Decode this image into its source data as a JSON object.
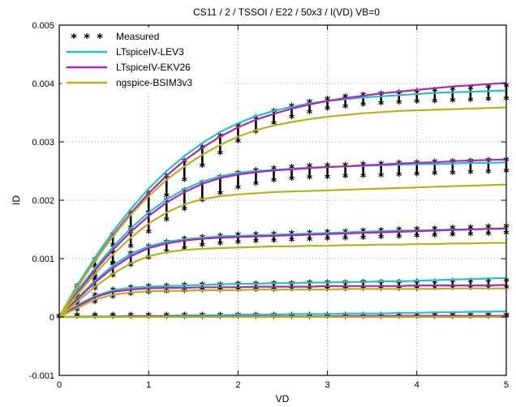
{
  "chart_data": {
    "type": "line",
    "title": "CS11 / 2 / TSSOI / E22 / 50x3 / I(VD) VB=0",
    "xlabel": "VD",
    "ylabel": "ID",
    "xlim": [
      0,
      5
    ],
    "ylim": [
      -0.001,
      0.005
    ],
    "x_ticks": [
      "0",
      "1",
      "2",
      "3",
      "4",
      "5"
    ],
    "y_ticks": [
      "-0.001",
      "0",
      "0.001",
      "0.002",
      "0.003",
      "0.004",
      "0.005"
    ],
    "grid": true,
    "legend_position": "top-left",
    "x": [
      0,
      0.2,
      0.4,
      0.6,
      0.8,
      1.0,
      1.2,
      1.4,
      1.6,
      1.8,
      2.0,
      2.2,
      2.4,
      2.6,
      2.8,
      3.0,
      3.2,
      3.4,
      3.6,
      3.8,
      4.0,
      4.2,
      4.4,
      4.6,
      4.8,
      5.0
    ],
    "series": [
      {
        "name": "Measured",
        "style": "markers",
        "color": "#000000",
        "curves": [
          {
            "min": [
              0,
              0.0,
              0.0,
              0.0,
              0.0,
              0.0,
              0.0,
              0.0,
              0.0,
              0.0,
              0.0,
              0.0,
              0.0,
              0.0,
              0.0,
              0.0,
              0.0,
              0.0,
              0.0,
              0.0,
              0.0,
              0.0,
              0.0,
              0.0,
              0.0,
              0.0
            ],
            "max": [
              0,
              3e-05,
              3e-05,
              3e-05,
              3e-05,
              3e-05,
              3e-05,
              3e-05,
              3e-05,
              3e-05,
              3e-05,
              3e-05,
              3e-05,
              3e-05,
              3e-05,
              3e-05,
              3e-05,
              3e-05,
              3e-05,
              3e-05,
              3e-05,
              3e-05,
              3e-05,
              3e-05,
              3e-05,
              3e-05
            ]
          },
          {
            "min": [
              0,
              0.00012,
              0.00025,
              0.00034,
              0.00039,
              0.00042,
              0.00043,
              0.00044,
              0.00045,
              0.00045,
              0.00046,
              0.00046,
              0.00046,
              0.00047,
              0.00047,
              0.00047,
              0.00047,
              0.00048,
              0.00048,
              0.00048,
              0.00048,
              0.00049,
              0.00049,
              0.00049,
              0.00049,
              0.0005
            ],
            "max": [
              0,
              0.00022,
              0.00037,
              0.00046,
              0.0005,
              0.00052,
              0.00053,
              0.00054,
              0.00055,
              0.00055,
              0.00056,
              0.00056,
              0.00057,
              0.00057,
              0.00058,
              0.00058,
              0.00058,
              0.00059,
              0.00059,
              0.00059,
              0.0006,
              0.0006,
              0.00061,
              0.00061,
              0.00062,
              0.00062
            ]
          },
          {
            "min": [
              0,
              0.00022,
              0.00048,
              0.0007,
              0.00088,
              0.00101,
              0.00111,
              0.00117,
              0.00122,
              0.00125,
              0.00127,
              0.00129,
              0.0013,
              0.00131,
              0.00132,
              0.00133,
              0.00134,
              0.00135,
              0.00136,
              0.00137,
              0.00138,
              0.00139,
              0.0014,
              0.00141,
              0.00142,
              0.00143
            ],
            "max": [
              0,
              0.00035,
              0.00066,
              0.0009,
              0.00108,
              0.0012,
              0.00128,
              0.00133,
              0.00136,
              0.00138,
              0.0014,
              0.00141,
              0.00142,
              0.00143,
              0.00144,
              0.00145,
              0.00146,
              0.00147,
              0.00148,
              0.00149,
              0.0015,
              0.00151,
              0.00152,
              0.00153,
              0.00154,
              0.00155
            ]
          },
          {
            "min": [
              0,
              0.00028,
              0.00062,
              0.00092,
              0.0012,
              0.00145,
              0.00166,
              0.00184,
              0.00199,
              0.00211,
              0.00221,
              0.00228,
              0.00233,
              0.00236,
              0.00238,
              0.00239,
              0.0024,
              0.00241,
              0.00242,
              0.00243,
              0.00244,
              0.00245,
              0.00246,
              0.00247,
              0.00248,
              0.00249
            ],
            "max": [
              0,
              0.00046,
              0.00086,
              0.00122,
              0.00152,
              0.00178,
              0.00199,
              0.00216,
              0.00229,
              0.00239,
              0.00246,
              0.00251,
              0.00254,
              0.00256,
              0.00258,
              0.00259,
              0.0026,
              0.00261,
              0.00262,
              0.00263,
              0.00264,
              0.00265,
              0.00266,
              0.00267,
              0.00268,
              0.00269
            ]
          },
          {
            "min": [
              0,
              0.00032,
              0.00072,
              0.0011,
              0.00145,
              0.00178,
              0.00207,
              0.00234,
              0.00258,
              0.0028,
              0.003,
              0.00317,
              0.00331,
              0.00342,
              0.0035,
              0.00356,
              0.0036,
              0.00363,
              0.00365,
              0.00367,
              0.00368,
              0.00369,
              0.0037,
              0.00371,
              0.00372,
              0.00373
            ],
            "max": [
              0,
              0.00052,
              0.00098,
              0.0014,
              0.00178,
              0.00211,
              0.00241,
              0.00267,
              0.0029,
              0.0031,
              0.00327,
              0.00341,
              0.00352,
              0.00361,
              0.00368,
              0.00373,
              0.00377,
              0.0038,
              0.00382,
              0.00384,
              0.00386,
              0.00388,
              0.0039,
              0.00392,
              0.00394,
              0.00396
            ]
          }
        ]
      },
      {
        "name": "LTspiceIV-LEV3",
        "style": "line",
        "color": "#22c3c3",
        "curves": [
          [
            0,
            1e-05,
            1e-05,
            1e-05,
            2e-05,
            2e-05,
            2e-05,
            3e-05,
            3e-05,
            3e-05,
            4e-05,
            4e-05,
            4e-05,
            5e-05,
            5e-05,
            5e-05,
            6e-05,
            6e-05,
            6e-05,
            7e-05,
            7e-05,
            8e-05,
            8e-05,
            9e-05,
            9e-05,
            0.0001
          ],
          [
            0,
            0.0002,
            0.00036,
            0.00046,
            0.0005,
            0.00052,
            0.00053,
            0.00054,
            0.00055,
            0.00056,
            0.00057,
            0.00057,
            0.00058,
            0.00058,
            0.00059,
            0.00059,
            0.0006,
            0.0006,
            0.00061,
            0.00061,
            0.00062,
            0.00063,
            0.00064,
            0.00065,
            0.00066,
            0.00067
          ],
          [
            0,
            0.00032,
            0.00062,
            0.00088,
            0.00108,
            0.00121,
            0.00129,
            0.00133,
            0.00136,
            0.00138,
            0.00139,
            0.0014,
            0.00141,
            0.00142,
            0.00143,
            0.00144,
            0.00145,
            0.00146,
            0.00147,
            0.00148,
            0.00148,
            0.00149,
            0.0015,
            0.0015,
            0.00151,
            0.00151
          ],
          [
            0,
            0.00044,
            0.00084,
            0.0012,
            0.00152,
            0.00179,
            0.00201,
            0.00219,
            0.00232,
            0.00241,
            0.00247,
            0.0025,
            0.00252,
            0.00254,
            0.00256,
            0.00257,
            0.00258,
            0.00259,
            0.0026,
            0.00261,
            0.00262,
            0.00262,
            0.00263,
            0.00264,
            0.00264,
            0.00265
          ],
          [
            0,
            0.00054,
            0.00102,
            0.00146,
            0.00185,
            0.0022,
            0.0025,
            0.00276,
            0.00298,
            0.00317,
            0.00332,
            0.00344,
            0.00353,
            0.0036,
            0.00366,
            0.0037,
            0.00373,
            0.00376,
            0.00378,
            0.0038,
            0.00382,
            0.00384,
            0.00385,
            0.00386,
            0.00387,
            0.00388
          ]
        ]
      },
      {
        "name": "LTspiceIV-EKV26",
        "style": "line",
        "color": "#b024c0",
        "curves": [
          [
            0,
            0.0,
            0.0,
            0.0,
            1e-05,
            1e-05,
            1e-05,
            1e-05,
            1e-05,
            1e-05,
            1e-05,
            1e-05,
            1e-05,
            1e-05,
            1e-05,
            1e-05,
            2e-05,
            2e-05,
            2e-05,
            2e-05,
            2e-05,
            2e-05,
            2e-05,
            2e-05,
            2e-05,
            2e-05
          ],
          [
            0,
            0.00018,
            0.00034,
            0.00043,
            0.00047,
            0.00049,
            0.0005,
            0.0005,
            0.00051,
            0.00051,
            0.00051,
            0.00052,
            0.00052,
            0.00052,
            0.00052,
            0.00053,
            0.00053,
            0.00053,
            0.00053,
            0.00053,
            0.00054,
            0.00054,
            0.00054,
            0.00054,
            0.00054,
            0.00055
          ],
          [
            0,
            0.0003,
            0.00059,
            0.00084,
            0.00104,
            0.00118,
            0.00126,
            0.00131,
            0.00134,
            0.00136,
            0.00137,
            0.00138,
            0.00139,
            0.0014,
            0.00141,
            0.00142,
            0.00143,
            0.00144,
            0.00145,
            0.00146,
            0.00147,
            0.00148,
            0.00149,
            0.0015,
            0.00151,
            0.00152
          ],
          [
            0,
            0.00041,
            0.0008,
            0.00115,
            0.00146,
            0.00173,
            0.00196,
            0.00214,
            0.00228,
            0.00238,
            0.00244,
            0.00248,
            0.00251,
            0.00253,
            0.00255,
            0.00257,
            0.00258,
            0.0026,
            0.00261,
            0.00263,
            0.00264,
            0.00265,
            0.00267,
            0.00268,
            0.00269,
            0.0027
          ],
          [
            0,
            0.0005,
            0.00097,
            0.0014,
            0.00178,
            0.00212,
            0.00242,
            0.00268,
            0.0029,
            0.00309,
            0.00325,
            0.00338,
            0.00348,
            0.00357,
            0.00364,
            0.0037,
            0.00375,
            0.00379,
            0.00383,
            0.00386,
            0.00389,
            0.00392,
            0.00395,
            0.00397,
            0.00399,
            0.00401
          ]
        ]
      },
      {
        "name": "ngspice-BSIM3v3",
        "style": "line",
        "color": "#b8b21a",
        "curves": [
          [
            0,
            0.0,
            0.0,
            0.0,
            0.0,
            0.0,
            0.0,
            0.0,
            0.0,
            0.0,
            0.0,
            0.0,
            0.0,
            0.0,
            0.0,
            0.0,
            0.0,
            0.0,
            0.0,
            0.0,
            0.0,
            0.0,
            0.0,
            0.0,
            0.0,
            0.0
          ],
          [
            0,
            0.00015,
            0.0003,
            0.00038,
            0.00042,
            0.00044,
            0.00045,
            0.00045,
            0.00046,
            0.00046,
            0.00046,
            0.00047,
            0.00047,
            0.00047,
            0.00047,
            0.00047,
            0.00048,
            0.00048,
            0.00048,
            0.00048,
            0.00048,
            0.00048,
            0.00049,
            0.00049,
            0.00049,
            0.00049
          ],
          [
            0,
            0.00026,
            0.00052,
            0.00074,
            0.00092,
            0.00104,
            0.00111,
            0.00115,
            0.00117,
            0.00118,
            0.00119,
            0.0012,
            0.00121,
            0.00121,
            0.00122,
            0.00122,
            0.00123,
            0.00123,
            0.00124,
            0.00124,
            0.00125,
            0.00125,
            0.00126,
            0.00126,
            0.00127,
            0.00127
          ],
          [
            0,
            0.00038,
            0.00074,
            0.00107,
            0.00136,
            0.0016,
            0.00179,
            0.00193,
            0.00202,
            0.00207,
            0.0021,
            0.00212,
            0.00214,
            0.00215,
            0.00216,
            0.00217,
            0.00218,
            0.00219,
            0.0022,
            0.00221,
            0.00222,
            0.00223,
            0.00224,
            0.00225,
            0.00226,
            0.00227
          ],
          [
            0,
            0.0005,
            0.00096,
            0.00138,
            0.00175,
            0.00207,
            0.00235,
            0.00258,
            0.00278,
            0.00295,
            0.00309,
            0.0032,
            0.00328,
            0.00334,
            0.00339,
            0.00343,
            0.00346,
            0.00349,
            0.00351,
            0.00353,
            0.00354,
            0.00355,
            0.00356,
            0.00357,
            0.00358,
            0.00359
          ]
        ]
      }
    ]
  }
}
